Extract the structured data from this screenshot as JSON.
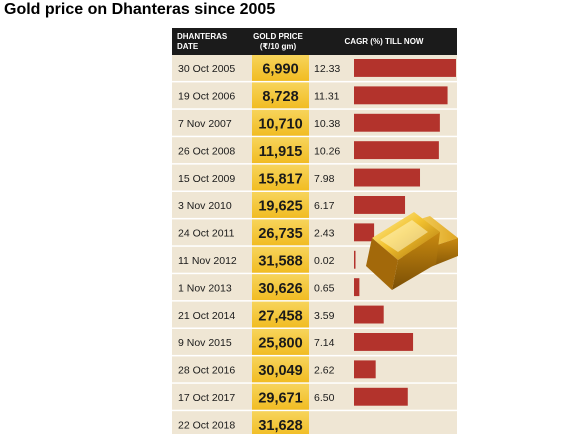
{
  "page_title": "Gold price on Dhanteras since 2005",
  "header": {
    "date_col_line1": "DHANTERAS",
    "date_col_line2": "DATE",
    "price_col_line1": "GOLD PRICE",
    "price_col_line2": "(₹/10 gm)",
    "cagr_col": "CAGR (%) TILL NOW"
  },
  "colors": {
    "header_bg": "#1b1b1b",
    "row_bg": "#efe6d4",
    "row_divider": "#ffffff",
    "price_col": "#f3c42f",
    "bar": "#b3332c",
    "text": "#1a1a1a"
  },
  "chart_data": {
    "type": "table",
    "columns": [
      "DHANTERAS DATE",
      "GOLD PRICE (₹/10 gm)",
      "CAGR (%) TILL NOW"
    ],
    "rows": [
      {
        "date": "30 Oct 2005",
        "price": "6,990",
        "cagr": "12.33",
        "cagr_value": 12.33
      },
      {
        "date": "19 Oct 2006",
        "price": "8,728",
        "cagr": "11.31",
        "cagr_value": 11.31
      },
      {
        "date": "7 Nov 2007",
        "price": "10,710",
        "cagr": "10.38",
        "cagr_value": 10.38
      },
      {
        "date": "26 Oct 2008",
        "price": "11,915",
        "cagr": "10.26",
        "cagr_value": 10.26
      },
      {
        "date": "15 Oct 2009",
        "price": "15,817",
        "cagr": "7.98",
        "cagr_value": 7.98
      },
      {
        "date": "3 Nov 2010",
        "price": "19,625",
        "cagr": "6.17",
        "cagr_value": 6.17
      },
      {
        "date": "24 Oct 2011",
        "price": "26,735",
        "cagr": "2.43",
        "cagr_value": 2.43
      },
      {
        "date": "11 Nov 2012",
        "price": "31,588",
        "cagr": "0.02",
        "cagr_value": 0.02
      },
      {
        "date": "1 Nov 2013",
        "price": "30,626",
        "cagr": "0.65",
        "cagr_value": 0.65
      },
      {
        "date": "21 Oct 2014",
        "price": "27,458",
        "cagr": "3.59",
        "cagr_value": 3.59
      },
      {
        "date": "9 Nov 2015",
        "price": "25,800",
        "cagr": "7.14",
        "cagr_value": 7.14
      },
      {
        "date": "28 Oct 2016",
        "price": "30,049",
        "cagr": "2.62",
        "cagr_value": 2.62
      },
      {
        "date": "17 Oct 2017",
        "price": "29,671",
        "cagr": "6.50",
        "cagr_value": 6.5
      },
      {
        "date": "22 Oct 2018",
        "price": "31,628",
        "cagr": "",
        "cagr_value": null
      }
    ],
    "bar_series": "CAGR (%) TILL NOW",
    "x_range": [
      0,
      12.33
    ],
    "grid": false,
    "legend": "none",
    "illustration": "gold-bars-icon"
  }
}
